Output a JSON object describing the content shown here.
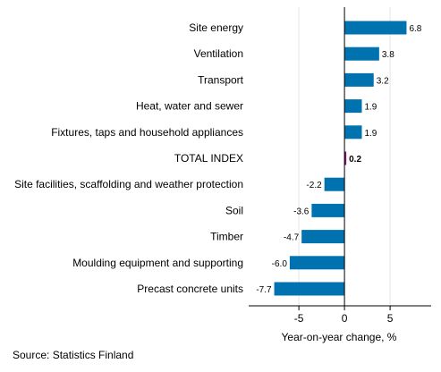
{
  "chart_data": {
    "type": "bar",
    "orientation": "horizontal",
    "categories": [
      "Site energy",
      "Ventilation",
      "Transport",
      "Heat, water and sewer",
      "Fixtures, taps and household appliances",
      "TOTAL INDEX",
      "Site facilities, scaffolding and weather protection",
      "Soil",
      "Timber",
      "Moulding equipment and supporting",
      "Precast concrete units"
    ],
    "values": [
      6.8,
      3.8,
      3.2,
      1.9,
      1.9,
      0.2,
      -2.2,
      -3.6,
      -4.7,
      -6.0,
      -7.7
    ],
    "data_labels": [
      "6.8",
      "3.8",
      "3.2",
      "1.9",
      "1.9",
      "0.2",
      "-2.2",
      "-3.6",
      "-4.7",
      "-6.0",
      "-7.7"
    ],
    "highlight_category": "TOTAL INDEX",
    "xlabel": "Year-on-year change, %",
    "ylabel": "",
    "title": "",
    "xlim": [
      -10.5,
      9.5
    ],
    "xticks": [
      -5,
      0,
      5
    ],
    "xtick_labels": [
      "-5",
      "0",
      "5"
    ],
    "grid": "vertical",
    "colors": {
      "bar": "#0072b0",
      "highlight": "#8b0d6b",
      "grid": "#e6e6e6",
      "zero_line": "#000000"
    }
  },
  "source": "Source: Statistics Finland"
}
